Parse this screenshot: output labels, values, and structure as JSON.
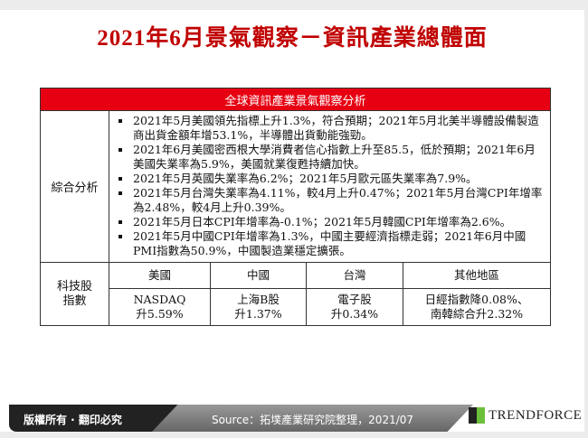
{
  "title": "2021年6月景氣觀察－資訊產業總體面",
  "table": {
    "header": "全球資訊產業景氣觀察分析",
    "analysis_label": "綜合分析",
    "bullets": [
      "2021年5月美國領先指標上升1.3%，符合預期；2021年5月北美半導體設備製造商出貨金額年增53.1%，半導體出貨動能強勁。",
      "2021年6月美國密西根大學消費者信心指數上升至85.5，低於預期；2021年6月美國失業率為5.9%，美國就業復甦持續加快。",
      "2021年5月英國失業率為6.2%；2021年5月歐元區失業率為7.9%。",
      "2021年5月台灣失業率為4.11%，較4月上升0.47%；2021年5月台灣CPI年增率為2.48%，較4月上升0.39%。",
      "2021年5月日本CPI年增率為-0.1%；2021年5月韓國CPI年增率為2.6%。",
      "2021年5月中國CPI年增率為1.3%，中國主要經濟指標走弱；2021年6月中國PMI指數為50.9%，中國製造業穩定擴張。"
    ],
    "tech_label_1": "科技股",
    "tech_label_2": "指數",
    "regions": [
      "美國",
      "中國",
      "台灣",
      "其他地區"
    ],
    "values": [
      [
        "NASDAQ",
        "升5.59%"
      ],
      [
        "上海B股",
        "升1.37%"
      ],
      [
        "電子股",
        "升0.34%"
      ],
      [
        "日經指數降0.08%、",
        "南韓綜合升2.32%"
      ]
    ]
  },
  "footer": {
    "copyright": "版權所有 · 翻印必究",
    "source": "Source：拓墣產業研究院整理，2021/07",
    "logo": "TRENDFORCE"
  },
  "colors": {
    "title": "#c00000",
    "header_bg": "#e60012"
  }
}
